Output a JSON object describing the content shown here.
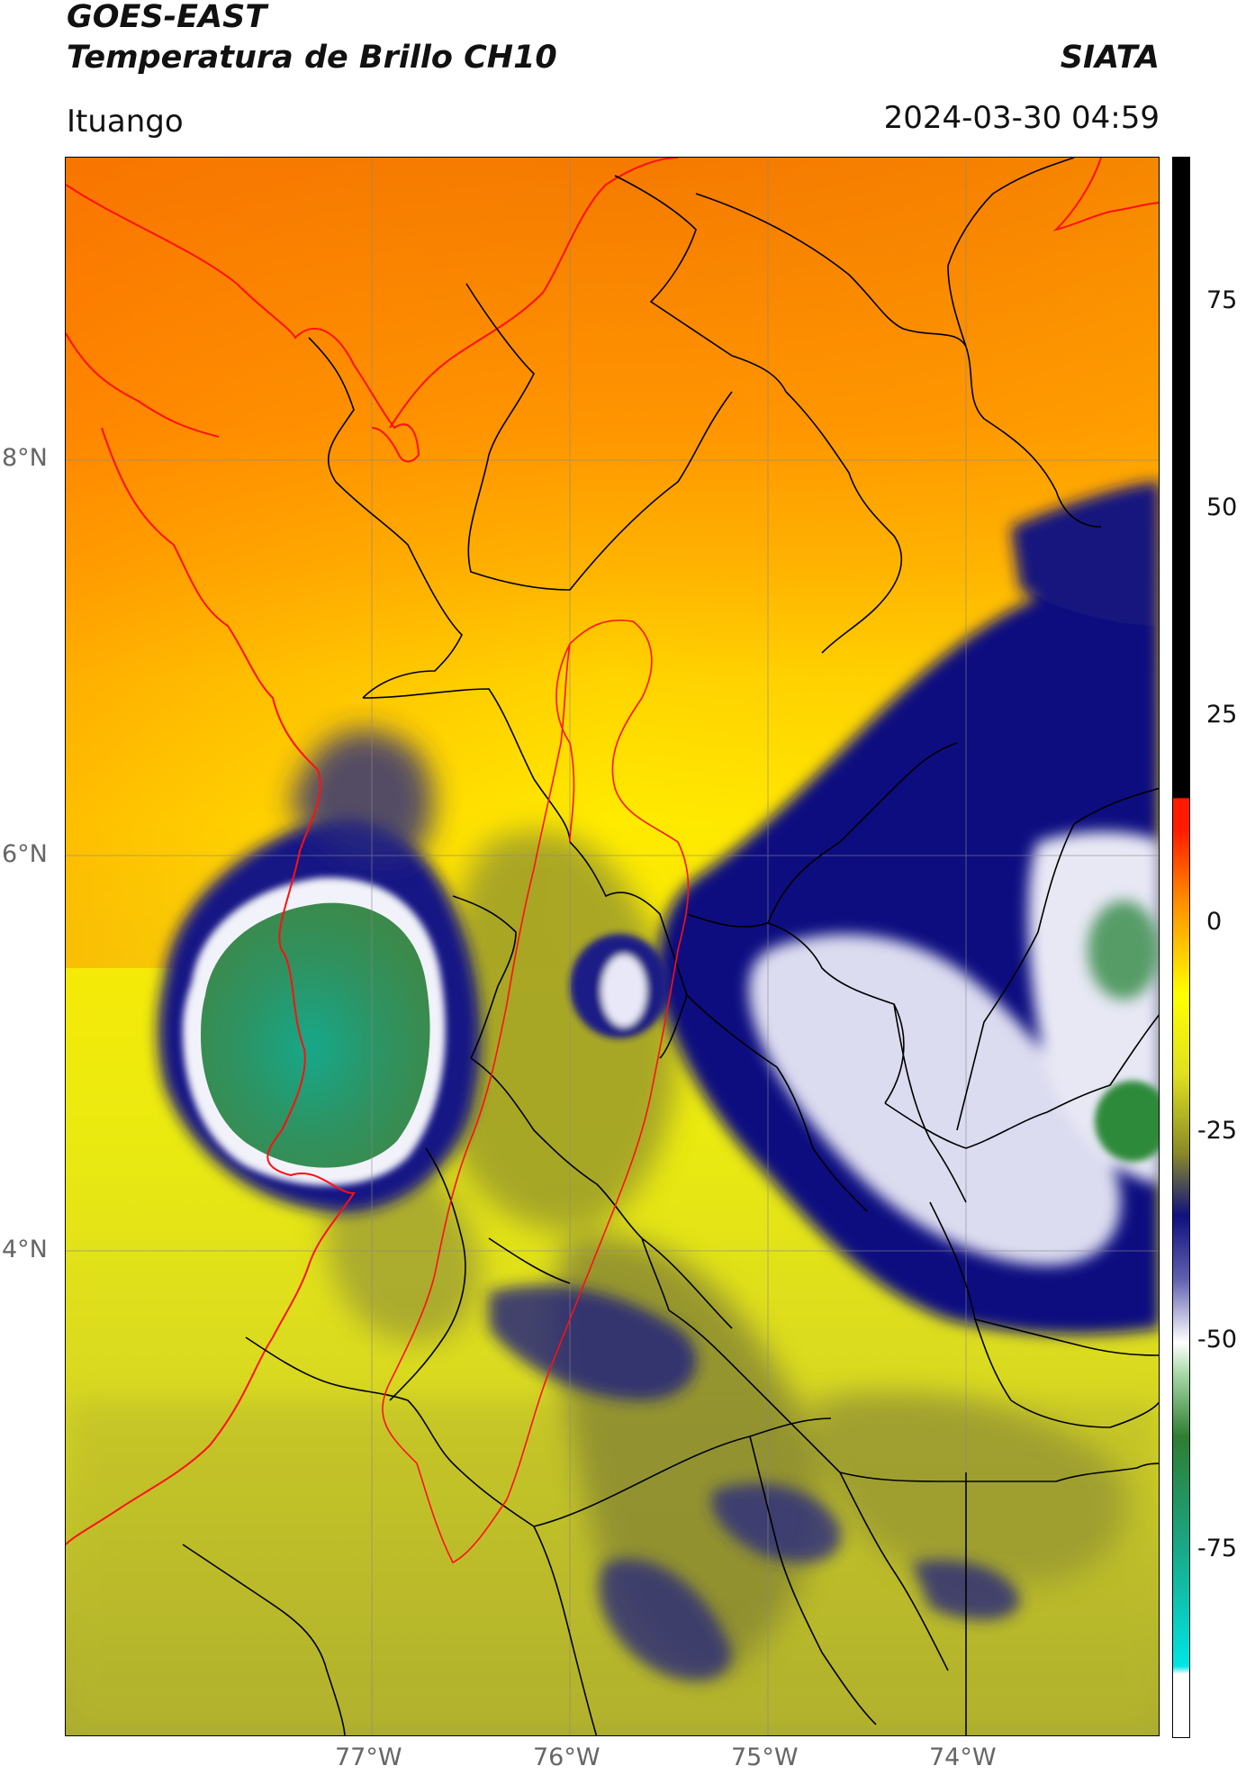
{
  "header": {
    "satellite": "GOES-EAST",
    "product": "Temperatura de Brillo CH10",
    "org": "SIATA",
    "region": "Ituango",
    "datetime": "2024-03-30 04:59"
  },
  "map": {
    "lat_labels": [
      "8°N",
      "6°N",
      "4°N"
    ],
    "lon_labels": [
      "77°W",
      "76°W",
      "75°W",
      "74°W"
    ],
    "lon_range": [
      -78.55,
      -73.0
    ],
    "lat_range": [
      1.75,
      9.55
    ],
    "gridlines": true
  },
  "colorbar": {
    "ticks": [
      "75",
      "50",
      "25",
      "0",
      "-25",
      "-50",
      "-75"
    ],
    "range": [
      -100,
      90
    ],
    "colors": {
      "black": "#000000",
      "red": "#ff1a00",
      "orange": "#ff8c00",
      "yellow": "#ffff00",
      "olive": "#8a8a28",
      "navy": "#101080",
      "white": "#ffffff",
      "green": "#2e7d32",
      "cyan": "#00e5e5"
    }
  }
}
